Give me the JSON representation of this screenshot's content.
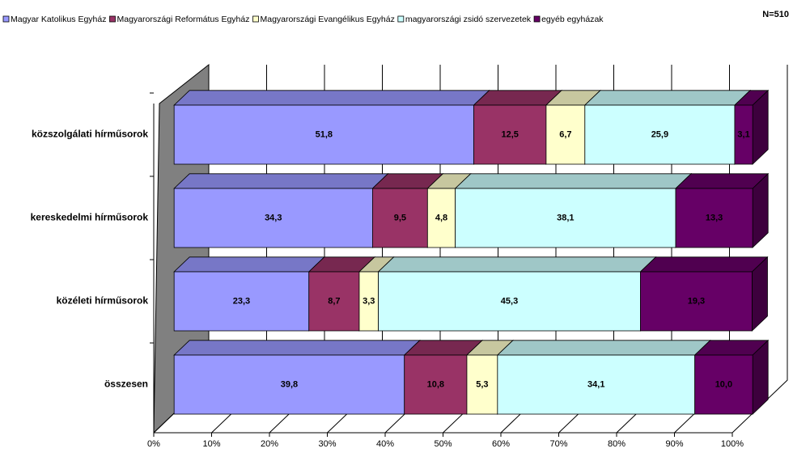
{
  "chart_data": {
    "type": "bar",
    "orientation": "horizontal",
    "stacked": true,
    "annotation": "N=510",
    "legend": "top",
    "grid": true,
    "categories": [
      "közszolgálati hírműsorok",
      "kereskedelmi hírműsorok",
      "közéleti hírműsorok",
      "összesen"
    ],
    "series": [
      {
        "name": "Magyar Katolikus Egyház",
        "color": "#9999ff",
        "values": [
          51.8,
          34.3,
          23.3,
          39.8
        ],
        "value_labels": [
          "51,8",
          "34,3",
          "23,3",
          "39,8"
        ]
      },
      {
        "name": "Magyarországi Református Egyház",
        "color": "#993366",
        "values": [
          12.5,
          9.5,
          8.7,
          10.8
        ],
        "value_labels": [
          "12,5",
          "9,5",
          "8,7",
          "10,8"
        ]
      },
      {
        "name": "Magyarországi Evangélikus Egyház",
        "color": "#ffffcc",
        "values": [
          6.7,
          4.8,
          3.3,
          5.3
        ],
        "value_labels": [
          "6,7",
          "4,8",
          "3,3",
          "5,3"
        ]
      },
      {
        "name": "magyarországi zsidó szervezetek",
        "color": "#ccffff",
        "values": [
          25.9,
          38.1,
          45.3,
          34.1
        ],
        "value_labels": [
          "25,9",
          "38,1",
          "45,3",
          "34,1"
        ]
      },
      {
        "name": "egyéb egyházak",
        "color": "#660066",
        "values": [
          3.1,
          13.3,
          19.3,
          10.0
        ],
        "value_labels": [
          "3,1",
          "13,3",
          "19,3",
          "10,0"
        ]
      }
    ],
    "xlim": [
      0,
      100
    ],
    "xticks": [
      {
        "value": 0,
        "label": "0%"
      },
      {
        "value": 10,
        "label": "10%"
      },
      {
        "value": 20,
        "label": "20%"
      },
      {
        "value": 30,
        "label": "30%"
      },
      {
        "value": 40,
        "label": "40%"
      },
      {
        "value": 50,
        "label": "50%"
      },
      {
        "value": 60,
        "label": "60%"
      },
      {
        "value": 70,
        "label": "70%"
      },
      {
        "value": 80,
        "label": "80%"
      },
      {
        "value": 90,
        "label": "90%"
      },
      {
        "value": 100,
        "label": "100%"
      }
    ]
  }
}
